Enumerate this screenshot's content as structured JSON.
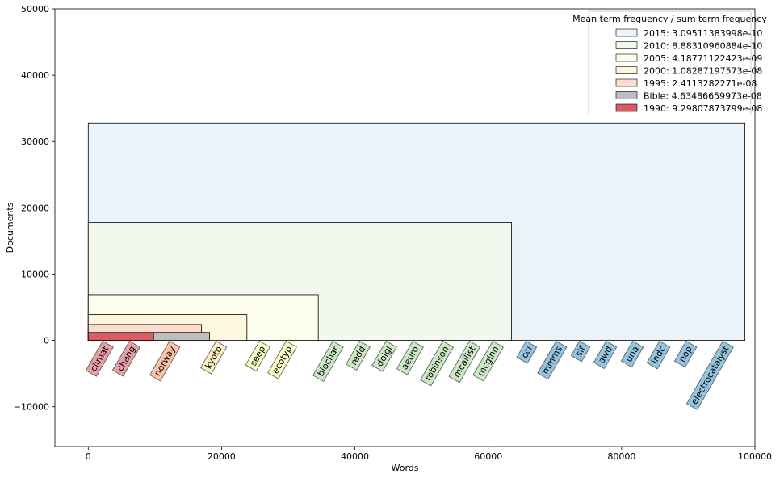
{
  "chart_data": {
    "type": "bar",
    "xlabel": "Words",
    "ylabel": "Documents",
    "xlim": [
      -5000,
      100000
    ],
    "ylim": [
      -16000,
      50000
    ],
    "xticks": [
      0,
      20000,
      40000,
      60000,
      80000,
      100000
    ],
    "yticks": [
      -10000,
      0,
      10000,
      20000,
      30000,
      40000,
      50000
    ],
    "xtick_labels": [
      "0",
      "20000",
      "40000",
      "60000",
      "80000",
      "100000"
    ],
    "ytick_labels": [
      "−10000",
      "0",
      "10000",
      "20000",
      "30000",
      "40000",
      "50000"
    ],
    "legend": {
      "title": "Mean term frequency / sum term frequency",
      "placement": "top-right"
    },
    "series": [
      {
        "name": "2015: 3.09511383998e-10",
        "words": 98500,
        "documents": 32800,
        "color": "#eaf2fa"
      },
      {
        "name": "2010: 8.88310960884e-10",
        "words": 63500,
        "documents": 17800,
        "color": "#f3f8ef"
      },
      {
        "name": "2005: 4.18771122423e-09",
        "words": 34500,
        "documents": 6900,
        "color": "#fdfdee"
      },
      {
        "name": "2000: 1.08287197573e-08",
        "words": 23800,
        "documents": 3900,
        "color": "#fff6e0"
      },
      {
        "name": "1995: 2.4113282271e-08",
        "words": 17000,
        "documents": 2400,
        "color": "#fcdccc"
      },
      {
        "name": "Bible: 4.63486659973e-08",
        "words": 18200,
        "documents": 1200,
        "color": "#bebebe"
      },
      {
        "name": "1990: 9.29807873799e-08",
        "words": 9800,
        "documents": 1100,
        "color": "#dc5a64"
      }
    ],
    "legend_order": [
      "2015: 3.09511383998e-10",
      "2010: 8.88310960884e-10",
      "2005: 4.18771122423e-09",
      "2000: 1.08287197573e-08",
      "1995: 2.4113282271e-08",
      "Bible: 4.63486659973e-08",
      "1990: 9.29807873799e-08"
    ],
    "word_labels": [
      {
        "text": "climat",
        "x": 2000,
        "color": "#e8a0a8"
      },
      {
        "text": "chang",
        "x": 6000,
        "color": "#e8a0a8"
      },
      {
        "text": "norway",
        "x": 12000,
        "color": "#fbc4a8"
      },
      {
        "text": "kyoto",
        "x": 19000,
        "color": "#fcefc0"
      },
      {
        "text": "seep",
        "x": 25500,
        "color": "#fafcc8"
      },
      {
        "text": "ecotyp",
        "x": 29500,
        "color": "#fafcc8"
      },
      {
        "text": "biochar",
        "x": 36500,
        "color": "#cce8c4"
      },
      {
        "text": "redd",
        "x": 40500,
        "color": "#cce8c4"
      },
      {
        "text": "doigl",
        "x": 44500,
        "color": "#cce8c4"
      },
      {
        "text": "aeuro",
        "x": 48500,
        "color": "#cce8c4"
      },
      {
        "text": "robinson",
        "x": 53000,
        "color": "#cce8c4"
      },
      {
        "text": "mcallist",
        "x": 57000,
        "color": "#cce8c4"
      },
      {
        "text": "mcginn",
        "x": 60500,
        "color": "#cce8c4"
      },
      {
        "text": "cci",
        "x": 65500,
        "color": "#94c4e0"
      },
      {
        "text": "mmms",
        "x": 70000,
        "color": "#94c4e0"
      },
      {
        "text": "sif",
        "x": 73500,
        "color": "#94c4e0"
      },
      {
        "text": "awd",
        "x": 77500,
        "color": "#94c4e0"
      },
      {
        "text": "una",
        "x": 81500,
        "color": "#94c4e0"
      },
      {
        "text": "indc",
        "x": 85500,
        "color": "#94c4e0"
      },
      {
        "text": "nop",
        "x": 89500,
        "color": "#94c4e0"
      },
      {
        "text": "electrocatalyst",
        "x": 95000,
        "color": "#94c4e0"
      }
    ]
  }
}
